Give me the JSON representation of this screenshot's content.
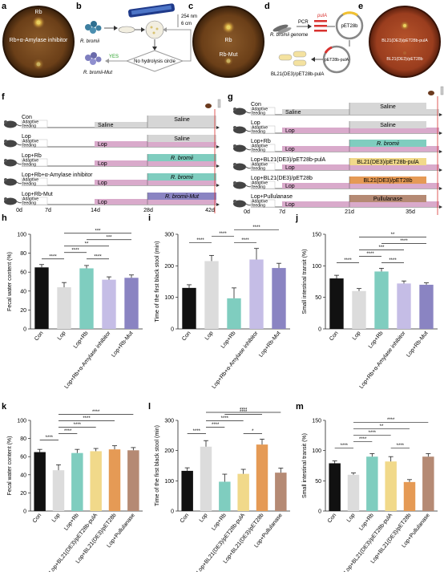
{
  "panel_labels": {
    "a": "a",
    "b": "b",
    "c": "c",
    "d": "d",
    "e": "e",
    "f": "f",
    "g": "g",
    "h": "h",
    "i": "i",
    "j": "j",
    "k": "k",
    "l": "l",
    "m": "m"
  },
  "panel_a": {
    "top": "Rb",
    "bottom": "Rb+α-Amylase inhibitor"
  },
  "panel_b": {
    "uv": "254 nm",
    "dist": "6 cm",
    "strain": "R. bromii",
    "mutant": "R. bromii-Mut",
    "yes": "YES",
    "no": "NO",
    "check": "No hydrolysis circle"
  },
  "panel_c": {
    "top": "Rb",
    "bottom": "Rb-Mut"
  },
  "panel_d": {
    "genome": "R. bromii genome",
    "pcr": "PCR",
    "gene": "pulA",
    "plasmid": "pET28b",
    "plasmid2": "pET28b-pulA",
    "host": "BL21(DE3)/pET28b-pulA"
  },
  "panel_e": {
    "top": "BL21(DE3)/pET28b-pulA",
    "bottom": "BL21(DE3)/pET28b"
  },
  "panel_f": {
    "common": "Adaptive feeding",
    "groups": [
      {
        "name": "Con",
        "seg1": "Saline",
        "seg2": "Saline"
      },
      {
        "name": "Lop",
        "seg1": "Lop",
        "seg2": "Saline"
      },
      {
        "name": "Lop+Rb",
        "seg1": "Lop",
        "seg2": "R. bromii"
      },
      {
        "name": "Lop+Rb+α-Amylase inhibitor",
        "seg1": "Lop",
        "seg2": "R. bromii"
      },
      {
        "name": "Lop+Rb-Mut",
        "seg1": "Lop",
        "seg2": "R. bromii-Mut"
      }
    ],
    "days": [
      "0d",
      "7d",
      "14d",
      "28d",
      "42d"
    ]
  },
  "panel_g": {
    "groups": [
      {
        "name": "Con",
        "seg1": "Saline",
        "seg2": "Saline"
      },
      {
        "name": "Lop",
        "seg1": "Lop",
        "seg2": "Saline"
      },
      {
        "name": "Lop+Rb",
        "seg1": "Lop",
        "seg2": "R. bromii"
      },
      {
        "name": "Lop+BL21(DE3)/pET28b-pulA",
        "seg1": "Lop",
        "seg2": "BL21(DE3)/pET28b-pulA"
      },
      {
        "name": "Lop+BL21(DE3)/pET28b",
        "seg1": "Lop",
        "seg2": "BL21(DE3)/pET28b"
      },
      {
        "name": "Lop+Pullulanase",
        "seg1": "Lop",
        "seg2": "Pullulanase"
      }
    ],
    "days": [
      "0d",
      "7d",
      "21d",
      "35d"
    ]
  },
  "chart_data": [
    {
      "panel": "h",
      "type": "bar",
      "ylabel": "Fecal water content (%)",
      "ylim": [
        0,
        100
      ],
      "ticks": [
        0,
        20,
        40,
        60,
        80,
        100
      ],
      "categories": [
        "Con",
        "Lop",
        "Lop+Rb",
        "Lop+Rb+α-Amylase inhibitor",
        "Lop+Rb-Mut"
      ],
      "values": [
        65,
        44,
        64,
        52,
        54
      ],
      "errors": [
        3,
        5,
        3,
        3,
        3
      ],
      "sig": [
        {
          "a": 0,
          "b": 1,
          "t": "****"
        },
        {
          "a": 1,
          "b": 2,
          "t": "****"
        },
        {
          "a": 2,
          "b": 3,
          "t": "****"
        },
        {
          "a": 2,
          "b": 4,
          "t": "***"
        },
        {
          "a": 1,
          "b": 3,
          "t": "**"
        },
        {
          "a": 1,
          "b": 4,
          "t": "***"
        }
      ]
    },
    {
      "panel": "i",
      "type": "bar",
      "ylabel": "Time of the first black stool (min)",
      "ylim": [
        0,
        300
      ],
      "ticks": [
        0,
        100,
        200,
        300
      ],
      "categories": [
        "Con",
        "Lop",
        "Lop+Rb",
        "Lop+Rb+α-Amylase inhibitor",
        "Lop+Rb-Mut"
      ],
      "values": [
        130,
        215,
        97,
        220,
        193
      ],
      "errors": [
        10,
        18,
        33,
        35,
        15
      ],
      "sig": [
        {
          "a": 0,
          "b": 1,
          "t": "****"
        },
        {
          "a": 1,
          "b": 2,
          "t": "****"
        },
        {
          "a": 2,
          "b": 3,
          "t": "****"
        },
        {
          "a": 2,
          "b": 4,
          "t": "****"
        }
      ]
    },
    {
      "panel": "j",
      "type": "bar",
      "ylabel": "Small intestinal transit (%)",
      "ylim": [
        0,
        150
      ],
      "ticks": [
        0,
        50,
        100,
        150
      ],
      "categories": [
        "Con",
        "Lop",
        "Lop+Rb",
        "Lop+Rb+α-Amylase inhibitor",
        "Lop+Rb-Mut"
      ],
      "values": [
        80,
        60,
        91,
        72,
        70
      ],
      "errors": [
        5,
        4,
        5,
        4,
        3
      ],
      "sig": [
        {
          "a": 0,
          "b": 1,
          "t": "****"
        },
        {
          "a": 1,
          "b": 2,
          "t": "****"
        },
        {
          "a": 2,
          "b": 3,
          "t": "****"
        },
        {
          "a": 2,
          "b": 4,
          "t": "****"
        },
        {
          "a": 1,
          "b": 3,
          "t": "***"
        },
        {
          "a": 1,
          "b": 4,
          "t": "**"
        }
      ]
    },
    {
      "panel": "k",
      "type": "bar",
      "ylabel": "Fecal water content (%)",
      "ylim": [
        0,
        100
      ],
      "ticks": [
        0,
        20,
        40,
        60,
        80,
        100
      ],
      "categories": [
        "Con",
        "Lop",
        "Lop+Rb",
        "Lop+BL21(DE3)/pET28b-pulA",
        "Lop+BL21(DE3)/pET28b",
        "Lop+Pullulanase"
      ],
      "values": [
        65,
        45,
        64,
        66,
        68,
        67
      ],
      "errors": [
        3,
        6,
        4,
        3,
        4,
        3
      ],
      "sig": [
        {
          "a": 0,
          "b": 1,
          "t": "****"
        },
        {
          "a": 1,
          "b": 2,
          "t": "****"
        },
        {
          "a": 1,
          "b": 3,
          "t": "****"
        },
        {
          "a": 1,
          "b": 4,
          "t": "****"
        },
        {
          "a": 1,
          "b": 5,
          "t": "****"
        }
      ]
    },
    {
      "panel": "l",
      "type": "bar",
      "ylabel": "Time of the first black stool (min)",
      "ylim": [
        0,
        300
      ],
      "ticks": [
        0,
        100,
        200,
        300
      ],
      "categories": [
        "Con",
        "Lop",
        "Lop+Rb",
        "Lop+BL21(DE3)/pET28b-pulA",
        "Lop+BL21(DE3)/pET28b",
        "Lop+Pullulanase"
      ],
      "values": [
        133,
        213,
        97,
        123,
        220,
        127
      ],
      "errors": [
        10,
        20,
        25,
        15,
        18,
        15
      ],
      "sig": [
        {
          "a": 0,
          "b": 1,
          "t": "****"
        },
        {
          "a": 1,
          "b": 2,
          "t": "****"
        },
        {
          "a": 1,
          "b": 3,
          "t": "****"
        },
        {
          "a": 3,
          "b": 4,
          "t": "*"
        },
        {
          "a": 2,
          "b": 4,
          "t": "****"
        },
        {
          "a": 1,
          "b": 5,
          "t": "****"
        }
      ]
    },
    {
      "panel": "m",
      "type": "bar",
      "ylabel": "Small intestinal transit (%)",
      "ylim": [
        0,
        150
      ],
      "ticks": [
        0,
        50,
        100,
        150
      ],
      "categories": [
        "Con",
        "Lop",
        "Lop+Rb",
        "Lop+BL21(DE3)/pET28b-pulA",
        "Lop+BL21(DE3)/pET28b",
        "Lop+Pullulanase"
      ],
      "values": [
        79,
        60,
        90,
        82,
        48,
        90
      ],
      "errors": [
        4,
        3,
        5,
        8,
        4,
        5
      ],
      "sig": [
        {
          "a": 0,
          "b": 1,
          "t": "****"
        },
        {
          "a": 1,
          "b": 2,
          "t": "****"
        },
        {
          "a": 3,
          "b": 4,
          "t": "****"
        },
        {
          "a": 1,
          "b": 3,
          "t": "****"
        },
        {
          "a": 1,
          "b": 4,
          "t": "**"
        },
        {
          "a": 1,
          "b": 5,
          "t": "****"
        }
      ]
    }
  ],
  "colors": {
    "con": "#111111",
    "lop": "#dcdcdc",
    "rb": "#7fcdbf",
    "inh": "#c5bde6",
    "mut": "#8a84c2",
    "pula": "#f1d98a",
    "pet": "#e59a55",
    "pull": "#b58a74",
    "lopbar": "#d9aacb",
    "saline": "#d6d6d6"
  }
}
